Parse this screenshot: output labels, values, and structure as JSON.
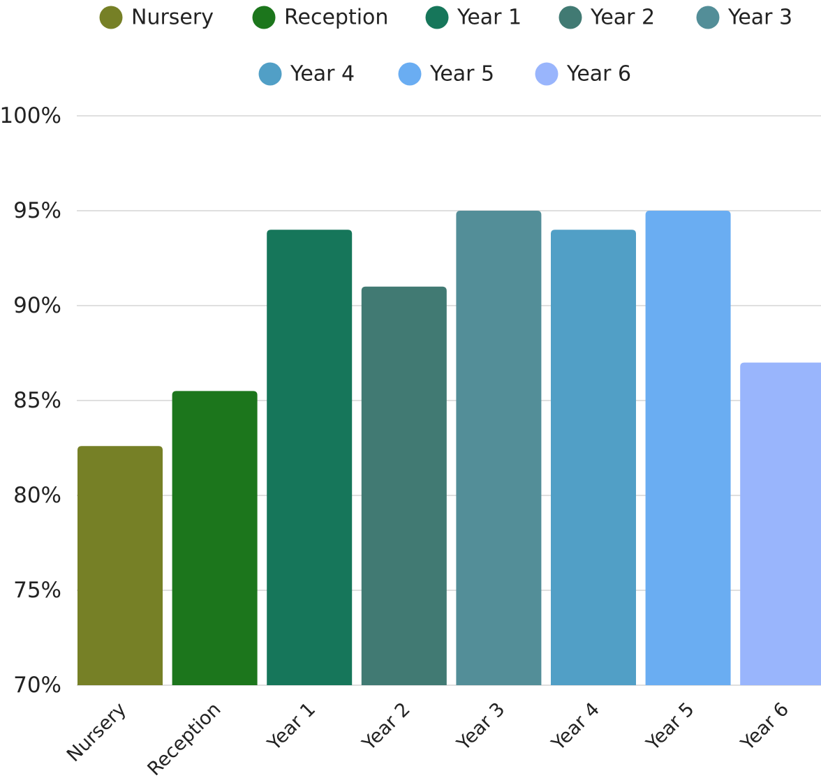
{
  "chart_data": {
    "type": "bar",
    "categories": [
      "Nursery",
      "Reception",
      "Year 1",
      "Year 2",
      "Year 3",
      "Year 4",
      "Year 5",
      "Year 6"
    ],
    "values": [
      82.6,
      85.5,
      94,
      91,
      95,
      94,
      95,
      87
    ],
    "colors": [
      "#768026",
      "#1c761c",
      "#16765a",
      "#417a73",
      "#538e98",
      "#519fc6",
      "#6aadf2",
      "#99b5fc"
    ],
    "legend": [
      "Nursery",
      "Reception",
      "Year 1",
      "Year 2",
      "Year 3",
      "Year 4",
      "Year 5",
      "Year 6"
    ],
    "legend_position": "top",
    "y_ticks": [
      "100%",
      "95%",
      "90%",
      "85%",
      "80%",
      "75%",
      "70%"
    ],
    "ylim": [
      70,
      100
    ],
    "y_unit": "%",
    "grid": true,
    "xlabel": "",
    "ylabel": "",
    "title": ""
  }
}
